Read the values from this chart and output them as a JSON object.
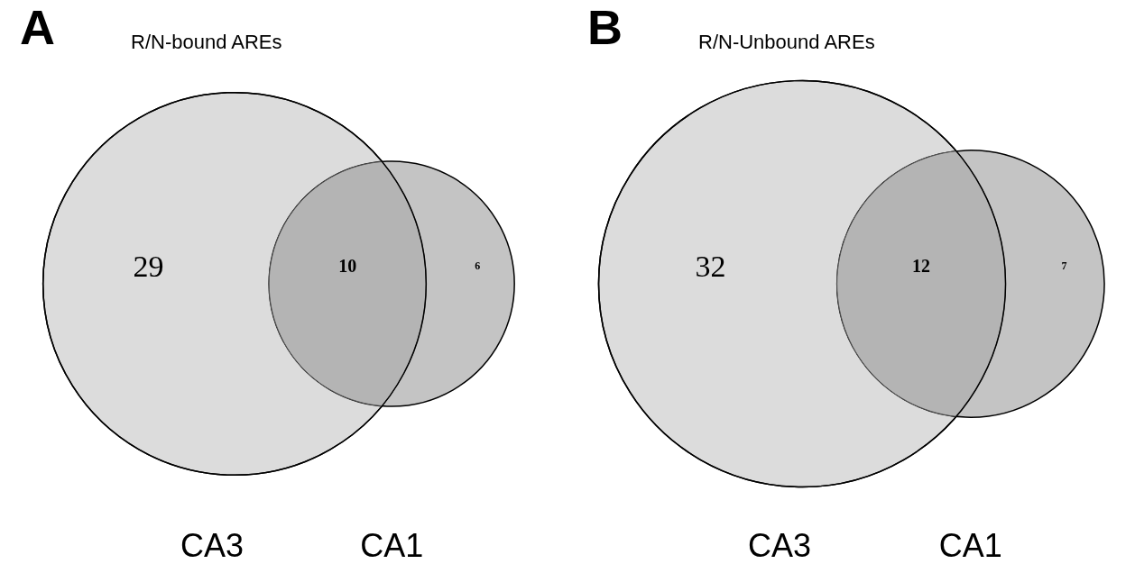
{
  "chart_data": [
    {
      "type": "other",
      "title": "R/N-bound AREs",
      "annotations": [
        "A"
      ],
      "categories": [
        "CA3",
        null,
        "CA1"
      ],
      "values": [
        29,
        10,
        6
      ],
      "value_labels": [
        "29",
        "10",
        "6"
      ],
      "colors": [
        "#dcdcdc",
        "#b4b4b4",
        "#c4c4c4"
      ]
    },
    {
      "type": "other",
      "title": "R/N-Unbound AREs",
      "annotations": [
        "B"
      ],
      "categories": [
        "CA3",
        null,
        "CA1"
      ],
      "values": [
        32,
        12,
        7
      ],
      "value_labels": [
        "32",
        "12",
        "7"
      ],
      "colors": [
        "#dcdcdc",
        "#b4b4b4",
        "#c4c4c4"
      ]
    }
  ]
}
